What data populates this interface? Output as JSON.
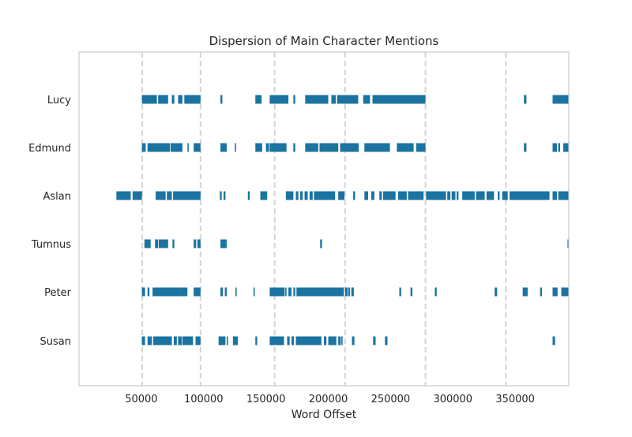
{
  "chart_data": {
    "type": "scatter",
    "title": "Dispersion of Main Character Mentions",
    "xlabel": "Word Offset",
    "ylabel": "",
    "xlim": [
      0,
      393000
    ],
    "x_ticks": [
      50000,
      100000,
      150000,
      200000,
      250000,
      300000,
      350000
    ],
    "x_tick_labels": [
      "50000",
      "100000",
      "150000",
      "200000",
      "250000",
      "300000",
      "350000"
    ],
    "vertical_dashed_lines": [
      50700,
      97500,
      157000,
      213500,
      278000,
      342500
    ],
    "grid": false,
    "marker": "vertical tick",
    "color": "#1a73a0",
    "axis_color": "#cccccc",
    "dashed_line_color": "#d4d4d4",
    "categories": [
      "Lucy",
      "Edmund",
      "Aslan",
      "Tumnus",
      "Peter",
      "Susan"
    ],
    "series": [
      {
        "name": "Lucy",
        "spans": [
          [
            50500,
            62500
          ],
          [
            63500,
            71500
          ],
          [
            74500,
            76500
          ],
          [
            79500,
            83000
          ],
          [
            84500,
            97500
          ],
          [
            113500,
            115000
          ],
          [
            141500,
            146500
          ],
          [
            153000,
            168000
          ],
          [
            172000,
            173500
          ],
          [
            181500,
            200000
          ],
          [
            202500,
            206000
          ],
          [
            207000,
            224000
          ],
          [
            228000,
            233500
          ],
          [
            235500,
            278000
          ],
          [
            357000,
            359000
          ],
          [
            380000,
            393000
          ]
        ]
      },
      {
        "name": "Edmund",
        "spans": [
          [
            50500,
            53500
          ],
          [
            55000,
            73000
          ],
          [
            73500,
            83000
          ],
          [
            87000,
            88000
          ],
          [
            92000,
            97500
          ],
          [
            113500,
            118500
          ],
          [
            125000,
            126000
          ],
          [
            141500,
            147000
          ],
          [
            150000,
            152500
          ],
          [
            153000,
            166500
          ],
          [
            172000,
            173500
          ],
          [
            181500,
            192000
          ],
          [
            193000,
            208000
          ],
          [
            209500,
            224500
          ],
          [
            229000,
            249500
          ],
          [
            255000,
            268500
          ],
          [
            270500,
            278000
          ],
          [
            357000,
            359000
          ],
          [
            380000,
            383500
          ],
          [
            384500,
            386000
          ],
          [
            388500,
            393000
          ]
        ]
      },
      {
        "name": "Aslan",
        "spans": [
          [
            30000,
            41500
          ],
          [
            43000,
            50500
          ],
          [
            61500,
            69500
          ],
          [
            70500,
            74500
          ],
          [
            75500,
            97500
          ],
          [
            113000,
            114500
          ],
          [
            116000,
            117500
          ],
          [
            135500,
            137000
          ],
          [
            145500,
            151000
          ],
          [
            166000,
            172000
          ],
          [
            174000,
            176000
          ],
          [
            177500,
            179500
          ],
          [
            181000,
            183500
          ],
          [
            185000,
            187500
          ],
          [
            188500,
            205500
          ],
          [
            208000,
            213000
          ],
          [
            220000,
            221500
          ],
          [
            229000,
            232000
          ],
          [
            234500,
            237000
          ],
          [
            241000,
            243000
          ],
          [
            244000,
            254000
          ],
          [
            256000,
            263000
          ],
          [
            264000,
            276500
          ],
          [
            278500,
            294500
          ],
          [
            295500,
            298000
          ],
          [
            299000,
            302000
          ],
          [
            303000,
            304500
          ],
          [
            307500,
            317500
          ],
          [
            318500,
            325500
          ],
          [
            327000,
            333000
          ],
          [
            336000,
            337500
          ],
          [
            339500,
            344000
          ],
          [
            345500,
            377500
          ],
          [
            380000,
            383500
          ],
          [
            384500,
            393000
          ]
        ]
      },
      {
        "name": "Tumnus",
        "spans": [
          [
            52500,
            57500
          ],
          [
            61000,
            63500
          ],
          [
            64000,
            71500
          ],
          [
            75000,
            76500
          ],
          [
            92000,
            94000
          ],
          [
            95000,
            97500
          ],
          [
            113500,
            117500
          ],
          [
            117500,
            118500
          ],
          [
            193500,
            195000
          ],
          [
            392000,
            393000
          ]
        ]
      },
      {
        "name": "Peter",
        "spans": [
          [
            50500,
            53000
          ],
          [
            55000,
            56500
          ],
          [
            59000,
            81500
          ],
          [
            81500,
            87000
          ],
          [
            92000,
            97500
          ],
          [
            113500,
            115500
          ],
          [
            117000,
            118500
          ],
          [
            125500,
            126500
          ],
          [
            140000,
            141000
          ],
          [
            153000,
            165000
          ],
          [
            165500,
            166500
          ],
          [
            168000,
            170500
          ],
          [
            172000,
            173500
          ],
          [
            174500,
            212500
          ],
          [
            213500,
            215500
          ],
          [
            216000,
            217500
          ],
          [
            218500,
            220500
          ],
          [
            257000,
            258500
          ],
          [
            266000,
            267500
          ],
          [
            285500,
            287000
          ],
          [
            333500,
            335500
          ],
          [
            356000,
            360000
          ],
          [
            370000,
            371500
          ],
          [
            380000,
            384000
          ],
          [
            387000,
            393000
          ]
        ]
      },
      {
        "name": "Susan",
        "spans": [
          [
            50500,
            53000
          ],
          [
            55000,
            58500
          ],
          [
            59500,
            74500
          ],
          [
            76000,
            78500
          ],
          [
            79500,
            82500
          ],
          [
            83000,
            91500
          ],
          [
            93500,
            97500
          ],
          [
            112000,
            117500
          ],
          [
            118500,
            119500
          ],
          [
            123500,
            127500
          ],
          [
            141500,
            143000
          ],
          [
            153000,
            164500
          ],
          [
            167000,
            169000
          ],
          [
            170500,
            172500
          ],
          [
            174000,
            194500
          ],
          [
            196500,
            198500
          ],
          [
            200000,
            206500
          ],
          [
            208000,
            210000
          ],
          [
            210500,
            211500
          ],
          [
            219000,
            221000
          ],
          [
            236000,
            238000
          ],
          [
            245500,
            247500
          ],
          [
            380000,
            382000
          ]
        ]
      }
    ]
  }
}
